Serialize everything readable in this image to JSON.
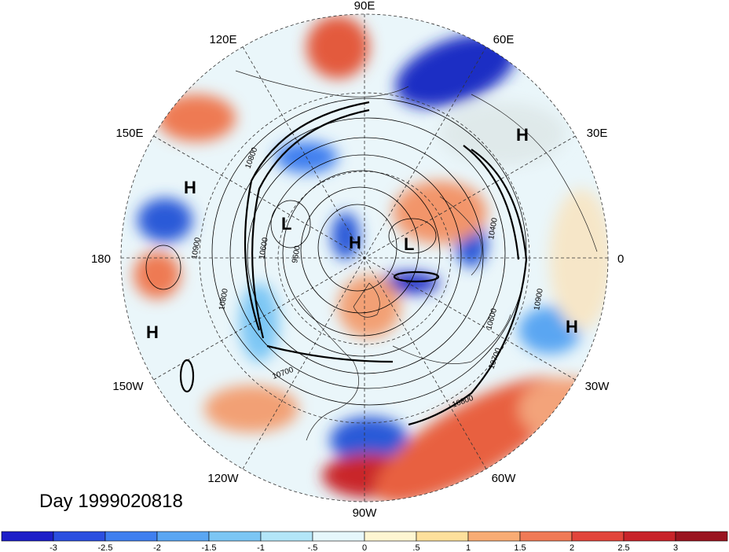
{
  "title": "Day 1999020818",
  "longitude_labels": [
    "90E",
    "60E",
    "30E",
    "0",
    "30W",
    "60W",
    "90W",
    "120W",
    "150W",
    "180",
    "150E",
    "120E"
  ],
  "pressure_centers": [
    "H",
    "H",
    "H",
    "H",
    "H",
    "L",
    "L"
  ],
  "contour_labels": [
    "10900",
    "10800",
    "10700",
    "10600",
    "10400",
    "10900",
    "10800",
    "10700",
    "10600",
    "9600",
    "10800"
  ],
  "colorbar": {
    "ticks": [
      "-3",
      "-2.5",
      "-2",
      "-1.5",
      "-1",
      "-.5",
      "0",
      ".5",
      "1",
      "1.5",
      "2",
      "2.5",
      "3"
    ],
    "colors": [
      "#1d1fc8",
      "#2b4fe0",
      "#3f7fef",
      "#5aa6f2",
      "#7cc6f4",
      "#b3e6f8",
      "#e6f7fb",
      "#fef6d2",
      "#fde09c",
      "#f8ac74",
      "#f07a56",
      "#e2453b",
      "#c8232a",
      "#9a1420"
    ]
  }
}
